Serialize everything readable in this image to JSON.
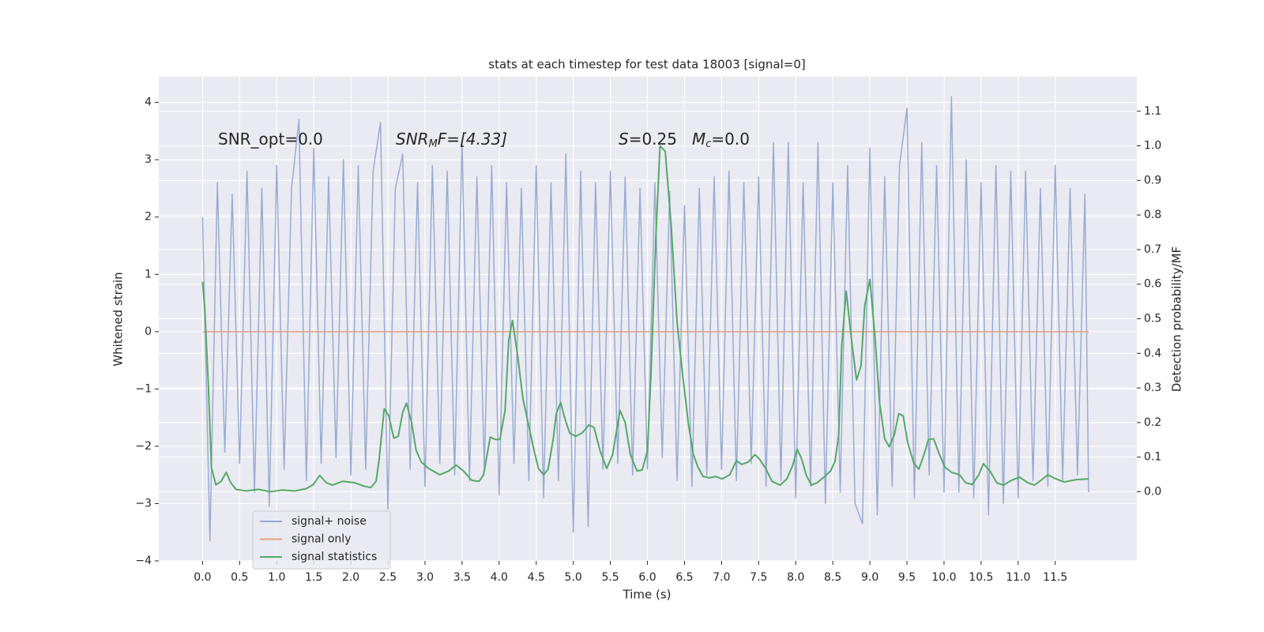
{
  "chart_data": {
    "type": "line",
    "title": "stats at each timestep for test data 18003 [signal=0]",
    "x_label": "Time (s)",
    "y_label": "Whitened strain",
    "y2_label": "Detection probability/MF",
    "annotations": [
      {
        "parts": [
          "SNR_opt=0.0"
        ]
      },
      {
        "parts": [
          "SNR",
          "M",
          "F=[4.33]"
        ]
      },
      {
        "parts": [
          "S",
          "=0.25"
        ]
      },
      {
        "parts": [
          "M",
          "c",
          "=0.0"
        ]
      }
    ],
    "xlim": [
      -0.59,
      12.6
    ],
    "ylim": [
      -4.0,
      4.45
    ],
    "y2lim": [
      -0.2,
      1.2
    ],
    "xticks": [
      {
        "value": 0,
        "label": "0.0"
      },
      0.5,
      {
        "value": 1,
        "label": "1.0"
      },
      1.5,
      {
        "value": 2,
        "label": "2.0"
      },
      2.5,
      {
        "value": 3,
        "label": "3.0"
      },
      3.5,
      {
        "value": 4,
        "label": "4.0"
      },
      4.5,
      {
        "value": 5,
        "label": "5.0"
      },
      5.5,
      {
        "value": 6,
        "label": "6.0"
      },
      6.5,
      {
        "value": 7,
        "label": "7.0"
      },
      7.5,
      {
        "value": 8,
        "label": "8.0"
      },
      8.5,
      {
        "value": 9,
        "label": "9.0"
      },
      9.5,
      {
        "value": 10,
        "label": "10.0"
      },
      10.5,
      {
        "value": 11,
        "label": "11.0"
      },
      11.5
    ],
    "yticks": [
      {
        "value": -4,
        "label": "−4"
      },
      {
        "value": -3,
        "label": "−3"
      },
      {
        "value": -2,
        "label": "−2"
      },
      {
        "value": -1,
        "label": "−1"
      },
      0,
      1,
      2,
      3,
      4
    ],
    "y2ticks": [
      {
        "value": 0,
        "label": "0.0"
      },
      0.1,
      0.2,
      0.3,
      0.4,
      0.5,
      0.6,
      0.7,
      0.8,
      0.9,
      {
        "value": 1,
        "label": "1.0"
      },
      1.1
    ],
    "grid": true,
    "legend": "lower left",
    "series": [
      {
        "name": "signal+ noise",
        "color": "#9aabd1",
        "axis": "y",
        "x": [
          0.0,
          0.1,
          0.2,
          0.3,
          0.4,
          0.5,
          0.6,
          0.7,
          0.8,
          0.9,
          1.0,
          1.1,
          1.2,
          1.3,
          1.4,
          1.5,
          1.6,
          1.7,
          1.8,
          1.9,
          2.0,
          2.1,
          2.2,
          2.3,
          2.4,
          2.5,
          2.6,
          2.7,
          2.8,
          2.9,
          3.0,
          3.1,
          3.2,
          3.3,
          3.4,
          3.5,
          3.6,
          3.7,
          3.8,
          3.9,
          4.0,
          4.1,
          4.2,
          4.3,
          4.4,
          4.5,
          4.6,
          4.7,
          4.8,
          4.9,
          5.0,
          5.1,
          5.2,
          5.3,
          5.4,
          5.5,
          5.6,
          5.7,
          5.8,
          5.9,
          6.0,
          6.1,
          6.2,
          6.3,
          6.4,
          6.5,
          6.6,
          6.7,
          6.8,
          6.9,
          7.0,
          7.1,
          7.2,
          7.3,
          7.4,
          7.5,
          7.6,
          7.7,
          7.8,
          7.9,
          8.0,
          8.1,
          8.2,
          8.3,
          8.4,
          8.5,
          8.6,
          8.7,
          8.8,
          8.9,
          9.0,
          9.1,
          9.2,
          9.3,
          9.4,
          9.5,
          9.6,
          9.7,
          9.8,
          9.9,
          10.0,
          10.1,
          10.2,
          10.3,
          10.4,
          10.5,
          10.6,
          10.7,
          10.8,
          10.9,
          11.0,
          11.1,
          11.2,
          11.3,
          11.4,
          11.5,
          11.6,
          11.7,
          11.8,
          11.9,
          11.95
        ],
        "values": [
          2.0,
          -3.65,
          2.6,
          -2.1,
          2.4,
          -2.3,
          2.8,
          -2.8,
          2.5,
          -3.05,
          2.9,
          -2.4,
          2.5,
          3.7,
          -2.6,
          3.2,
          -2.3,
          2.7,
          -2.2,
          3.0,
          -2.5,
          2.9,
          -2.4,
          2.8,
          3.65,
          -3.1,
          2.5,
          3.1,
          -2.4,
          2.6,
          -2.7,
          2.9,
          -2.3,
          2.8,
          -2.5,
          3.3,
          -2.6,
          2.7,
          -2.4,
          2.9,
          -2.85,
          2.6,
          -2.3,
          2.5,
          -2.6,
          2.9,
          -2.9,
          2.6,
          -2.6,
          3.1,
          -3.5,
          2.8,
          -3.4,
          2.6,
          -2.4,
          2.8,
          -2.3,
          2.7,
          -2.5,
          2.5,
          -2.4,
          2.6,
          -2.2,
          2.45,
          -2.6,
          2.2,
          -2.7,
          2.5,
          -2.5,
          2.7,
          -2.4,
          2.8,
          -2.6,
          2.6,
          -2.3,
          2.7,
          -2.7,
          3.3,
          -2.6,
          3.3,
          -2.9,
          2.6,
          -2.7,
          3.3,
          -3.0,
          2.6,
          -2.8,
          2.9,
          -3.0,
          -3.35,
          3.2,
          -3.2,
          2.7,
          -2.7,
          2.9,
          3.9,
          -2.9,
          3.3,
          -2.5,
          2.9,
          -2.8,
          4.1,
          -2.8,
          3.0,
          -2.9,
          2.6,
          -3.2,
          2.9,
          -3.0,
          2.8,
          -2.9,
          2.8,
          -2.6,
          2.5,
          -2.7,
          2.9,
          -2.6,
          2.5,
          -2.5,
          2.4,
          -2.8
        ]
      },
      {
        "name": "signal only",
        "color": "#e0a080",
        "axis": "y",
        "x": [
          0.0,
          11.95
        ],
        "values": [
          0,
          0
        ]
      },
      {
        "name": "signal statistics",
        "color": "#55a868",
        "axis": "y2",
        "x": [
          0.0,
          0.03,
          0.08,
          0.12,
          0.18,
          0.25,
          0.32,
          0.38,
          0.45,
          0.59,
          0.75,
          0.91,
          1.08,
          1.24,
          1.4,
          1.49,
          1.58,
          1.67,
          1.75,
          1.89,
          2.05,
          2.18,
          2.27,
          2.34,
          2.38,
          2.45,
          2.51,
          2.58,
          2.64,
          2.7,
          2.75,
          2.82,
          2.88,
          2.95,
          3.05,
          3.2,
          3.32,
          3.42,
          3.52,
          3.63,
          3.73,
          3.79,
          3.88,
          3.95,
          4.01,
          4.08,
          4.13,
          4.18,
          4.25,
          4.32,
          4.39,
          4.47,
          4.53,
          4.6,
          4.66,
          4.73,
          4.77,
          4.83,
          4.88,
          4.95,
          5.03,
          5.12,
          5.21,
          5.28,
          5.36,
          5.45,
          5.53,
          5.63,
          5.7,
          5.77,
          5.86,
          5.93,
          6.0,
          6.05,
          6.11,
          6.17,
          6.24,
          6.32,
          6.4,
          6.47,
          6.55,
          6.62,
          6.68,
          6.75,
          6.84,
          6.92,
          7.01,
          7.11,
          7.2,
          7.27,
          7.36,
          7.45,
          7.51,
          7.6,
          7.68,
          7.79,
          7.88,
          7.96,
          8.02,
          8.08,
          8.14,
          8.21,
          8.29,
          8.38,
          8.47,
          8.53,
          8.58,
          8.62,
          8.68,
          8.75,
          8.82,
          8.88,
          8.93,
          9.0,
          9.07,
          9.13,
          9.2,
          9.26,
          9.33,
          9.39,
          9.45,
          9.51,
          9.59,
          9.66,
          9.73,
          9.79,
          9.86,
          9.93,
          10.01,
          10.1,
          10.21,
          10.29,
          10.38,
          10.47,
          10.53,
          10.62,
          10.71,
          10.8,
          10.91,
          11.02,
          11.13,
          11.22,
          11.32,
          11.4,
          11.51,
          11.62,
          11.78,
          11.95
        ],
        "values": [
          0.607,
          0.53,
          0.3,
          0.07,
          0.02,
          0.03,
          0.056,
          0.026,
          0.007,
          0.002,
          0.007,
          0.0,
          0.005,
          0.002,
          0.009,
          0.02,
          0.047,
          0.026,
          0.019,
          0.03,
          0.026,
          0.016,
          0.012,
          0.03,
          0.09,
          0.24,
          0.22,
          0.155,
          0.16,
          0.23,
          0.256,
          0.2,
          0.12,
          0.086,
          0.067,
          0.049,
          0.06,
          0.077,
          0.06,
          0.033,
          0.03,
          0.049,
          0.158,
          0.151,
          0.151,
          0.235,
          0.44,
          0.495,
          0.393,
          0.27,
          0.2,
          0.12,
          0.067,
          0.049,
          0.065,
          0.153,
          0.226,
          0.258,
          0.216,
          0.17,
          0.16,
          0.17,
          0.193,
          0.186,
          0.119,
          0.067,
          0.107,
          0.235,
          0.2,
          0.107,
          0.06,
          0.063,
          0.119,
          0.35,
          0.72,
          1.0,
          0.984,
          0.77,
          0.49,
          0.347,
          0.2,
          0.107,
          0.072,
          0.044,
          0.04,
          0.044,
          0.037,
          0.049,
          0.09,
          0.079,
          0.086,
          0.107,
          0.095,
          0.065,
          0.03,
          0.019,
          0.037,
          0.077,
          0.123,
          0.095,
          0.049,
          0.019,
          0.026,
          0.042,
          0.06,
          0.088,
          0.165,
          0.42,
          0.58,
          0.444,
          0.323,
          0.363,
          0.537,
          0.614,
          0.444,
          0.258,
          0.153,
          0.13,
          0.165,
          0.226,
          0.219,
          0.142,
          0.084,
          0.065,
          0.107,
          0.151,
          0.153,
          0.112,
          0.072,
          0.056,
          0.049,
          0.026,
          0.021,
          0.049,
          0.081,
          0.06,
          0.026,
          0.019,
          0.033,
          0.042,
          0.026,
          0.019,
          0.035,
          0.049,
          0.037,
          0.028,
          0.035,
          0.037
        ]
      }
    ]
  }
}
